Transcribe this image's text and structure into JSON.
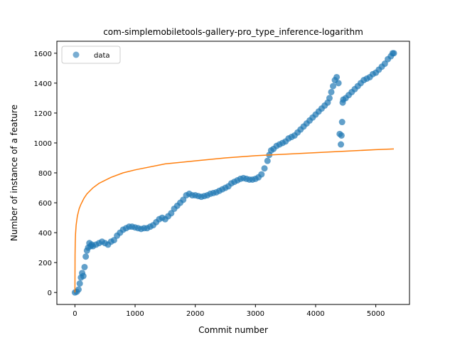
{
  "chart_data": {
    "type": "scatter",
    "title": "com-simplemobiletools-gallery-pro_type_inference-logarithm",
    "xlabel": "Commit number",
    "ylabel": "Number of instance of a feature",
    "xlim": [
      -300,
      5560
    ],
    "ylim": [
      -80,
      1680
    ],
    "xticks": [
      0,
      1000,
      2000,
      3000,
      4000,
      5000
    ],
    "yticks": [
      0,
      200,
      400,
      600,
      800,
      1000,
      1200,
      1400,
      1600
    ],
    "legend": {
      "placement": "upper-left",
      "entries": [
        "data"
      ]
    },
    "grid": false,
    "series": [
      {
        "name": "data",
        "kind": "scatter",
        "color": "#1f77b4",
        "x": [
          0,
          30,
          60,
          80,
          100,
          120,
          140,
          160,
          180,
          200,
          220,
          240,
          260,
          280,
          300,
          350,
          400,
          450,
          500,
          550,
          600,
          650,
          700,
          750,
          800,
          850,
          900,
          950,
          1000,
          1050,
          1100,
          1150,
          1200,
          1250,
          1300,
          1350,
          1400,
          1450,
          1500,
          1550,
          1600,
          1650,
          1700,
          1750,
          1800,
          1850,
          1900,
          1950,
          2000,
          2050,
          2100,
          2150,
          2200,
          2250,
          2300,
          2350,
          2400,
          2450,
          2500,
          2550,
          2600,
          2650,
          2700,
          2750,
          2800,
          2850,
          2900,
          2950,
          3000,
          3050,
          3100,
          3150,
          3200,
          3230,
          3260,
          3300,
          3350,
          3400,
          3450,
          3500,
          3550,
          3600,
          3650,
          3700,
          3750,
          3800,
          3850,
          3900,
          3950,
          4000,
          4050,
          4100,
          4150,
          4200,
          4230,
          4260,
          4290,
          4320,
          4350,
          4380,
          4400,
          4420,
          4430,
          4440,
          4450,
          4460,
          4500,
          4550,
          4600,
          4650,
          4700,
          4750,
          4800,
          4850,
          4900,
          4950,
          5000,
          5050,
          5100,
          5150,
          5200,
          5250,
          5280,
          5300
        ],
        "y": [
          0,
          5,
          20,
          60,
          100,
          130,
          110,
          170,
          240,
          280,
          300,
          330,
          310,
          320,
          310,
          320,
          330,
          340,
          330,
          320,
          340,
          350,
          380,
          400,
          420,
          430,
          440,
          440,
          435,
          430,
          425,
          430,
          430,
          440,
          450,
          470,
          490,
          500,
          490,
          510,
          530,
          560,
          580,
          600,
          620,
          650,
          660,
          650,
          650,
          645,
          640,
          645,
          650,
          660,
          665,
          670,
          680,
          690,
          700,
          710,
          730,
          740,
          750,
          760,
          765,
          760,
          755,
          755,
          760,
          770,
          790,
          830,
          880,
          920,
          950,
          960,
          980,
          990,
          1000,
          1010,
          1030,
          1040,
          1050,
          1070,
          1090,
          1110,
          1130,
          1150,
          1170,
          1190,
          1210,
          1230,
          1250,
          1270,
          1300,
          1340,
          1380,
          1420,
          1440,
          1400,
          1060,
          990,
          1050,
          1140,
          1270,
          1290,
          1300,
          1320,
          1340,
          1360,
          1380,
          1400,
          1420,
          1430,
          1440,
          1460,
          1470,
          1490,
          1510,
          1530,
          1560,
          1580,
          1600,
          1600
        ]
      },
      {
        "name": "",
        "kind": "line",
        "color": "#ff7f0e",
        "x": [
          0,
          2,
          5,
          10,
          20,
          40,
          70,
          100,
          150,
          200,
          300,
          400,
          600,
          800,
          1000,
          1500,
          2000,
          2500,
          3000,
          3500,
          4000,
          4500,
          5000,
          5300
        ],
        "y": [
          0,
          250,
          330,
          390,
          450,
          510,
          560,
          590,
          630,
          660,
          700,
          730,
          770,
          800,
          820,
          860,
          880,
          900,
          915,
          925,
          935,
          945,
          955,
          960
        ]
      }
    ]
  }
}
